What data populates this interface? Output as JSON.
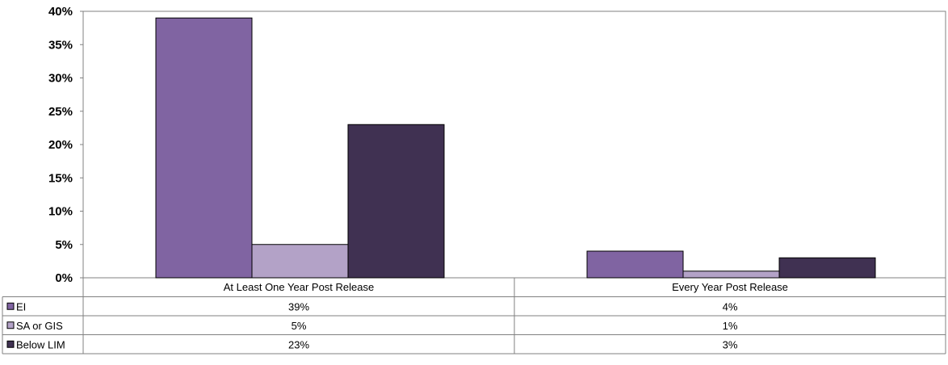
{
  "chart_data": {
    "type": "bar",
    "categories": [
      "At Least One Year Post Release",
      "Every Year Post Release"
    ],
    "series": [
      {
        "name": "EI",
        "values": [
          39,
          4
        ],
        "labels": [
          "39%",
          "4%"
        ],
        "color": "#8064A2"
      },
      {
        "name": "SA or GIS",
        "values": [
          5,
          1
        ],
        "labels": [
          "5%",
          "1%"
        ],
        "color": "#B3A2C7"
      },
      {
        "name": "Below LIM",
        "values": [
          23,
          3
        ],
        "labels": [
          "23%",
          "3%"
        ],
        "color": "#403152"
      }
    ],
    "ylim": [
      0,
      40
    ],
    "yticks": [
      "0%",
      "5%",
      "10%",
      "15%",
      "20%",
      "25%",
      "30%",
      "35%",
      "40%"
    ],
    "grid": false,
    "legend": "data-table"
  }
}
